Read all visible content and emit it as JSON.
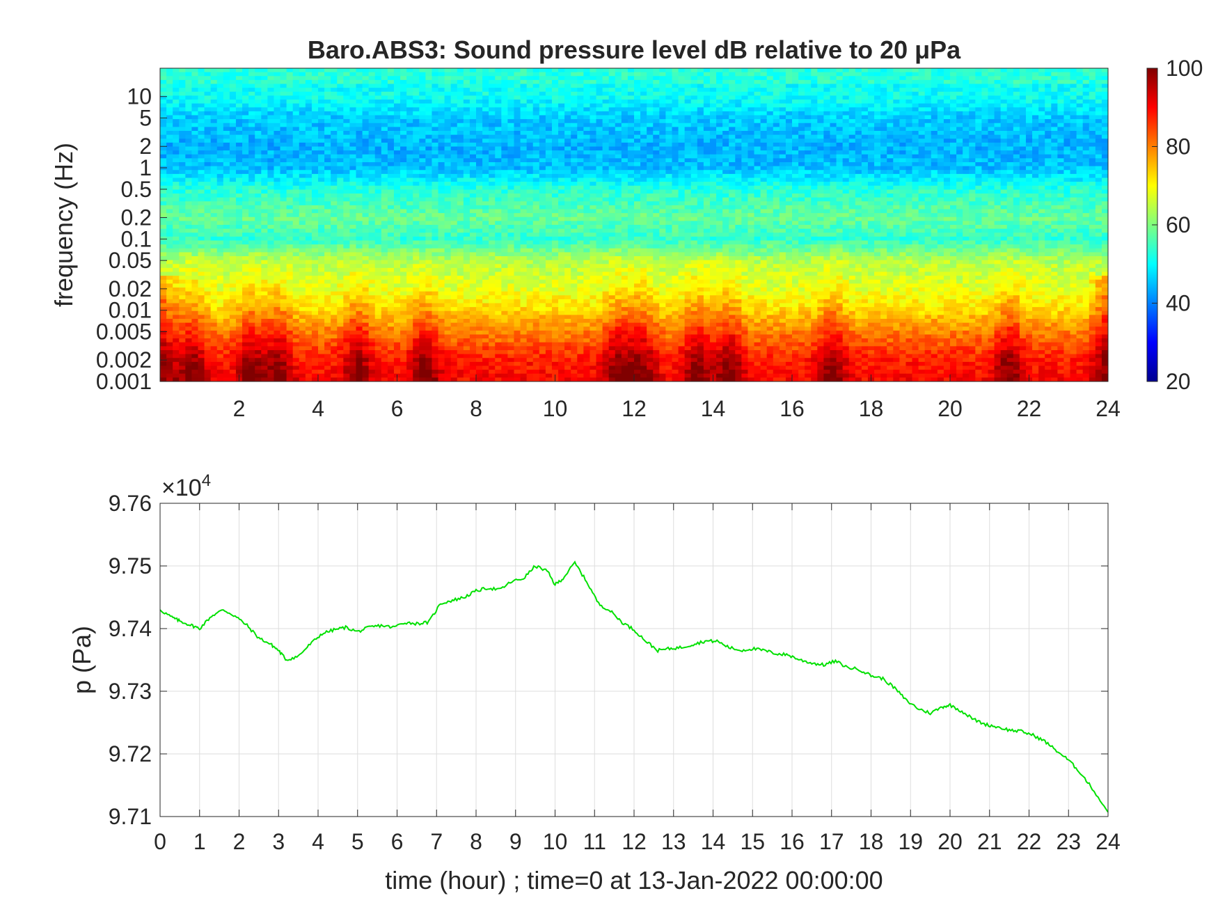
{
  "chart_data": [
    {
      "type": "heatmap",
      "title": "Baro.ABS3: Sound pressure level dB relative to 20 μPa",
      "xlabel": "",
      "ylabel": "frequency (Hz)",
      "x_range": [
        0,
        24
      ],
      "x_ticks": [
        2,
        4,
        6,
        8,
        10,
        12,
        14,
        16,
        18,
        20,
        22,
        24
      ],
      "y_scale": "log",
      "y_range": [
        0.001,
        25
      ],
      "y_ticks": [
        0.001,
        0.002,
        0.005,
        0.01,
        0.02,
        0.05,
        0.1,
        0.2,
        0.5,
        1,
        2,
        5,
        10
      ],
      "y_tick_labels": [
        "0.001",
        "0.002",
        "0.005",
        "0.01",
        "0.02",
        "0.05",
        "0.1",
        "0.2",
        "0.5",
        "1",
        "2",
        "5",
        "10"
      ],
      "colormap": "jet",
      "colorbar": {
        "min": 20,
        "max": 100,
        "ticks": [
          20,
          40,
          60,
          80,
          100
        ]
      },
      "level_profile": [
        {
          "frequency": 0.001,
          "db": 90
        },
        {
          "frequency": 0.002,
          "db": 88
        },
        {
          "frequency": 0.005,
          "db": 80
        },
        {
          "frequency": 0.01,
          "db": 73
        },
        {
          "frequency": 0.02,
          "db": 68
        },
        {
          "frequency": 0.05,
          "db": 64
        },
        {
          "frequency": 0.1,
          "db": 54
        },
        {
          "frequency": 0.2,
          "db": 58
        },
        {
          "frequency": 0.5,
          "db": 53
        },
        {
          "frequency": 1,
          "db": 45
        },
        {
          "frequency": 2,
          "db": 44
        },
        {
          "frequency": 5,
          "db": 46
        },
        {
          "frequency": 10,
          "db": 51
        }
      ],
      "bursts_hours": [
        0.8,
        2.3,
        3.0,
        5.0,
        6.7,
        11.6,
        12.2,
        13.6,
        14.4,
        17.0,
        21.5
      ]
    },
    {
      "type": "line",
      "xlabel": "time (hour) ; time=0 at 13-Jan-2022 00:00:00",
      "ylabel": "p (Pa)",
      "y_multiplier_label": "×10",
      "y_multiplier_exp": "4",
      "xlim": [
        0,
        24
      ],
      "ylim": [
        97100,
        97600
      ],
      "x_ticks": [
        0,
        1,
        2,
        3,
        4,
        5,
        6,
        7,
        8,
        9,
        10,
        11,
        12,
        13,
        14,
        15,
        16,
        17,
        18,
        19,
        20,
        21,
        22,
        23,
        24
      ],
      "y_ticks": [
        97100,
        97200,
        97300,
        97400,
        97500,
        97600
      ],
      "y_tick_labels": [
        "9.71",
        "9.72",
        "9.73",
        "9.74",
        "9.75",
        "9.76"
      ],
      "grid": true,
      "line_color": "#00e000",
      "x": [
        0,
        0.3,
        0.5,
        0.8,
        1.0,
        1.3,
        1.6,
        1.9,
        2.2,
        2.5,
        2.8,
        3.0,
        3.2,
        3.5,
        3.8,
        4.1,
        4.4,
        4.7,
        5.0,
        5.3,
        5.6,
        5.9,
        6.2,
        6.5,
        6.8,
        7.1,
        7.4,
        7.7,
        8.0,
        8.3,
        8.6,
        8.9,
        9.2,
        9.5,
        9.8,
        10.0,
        10.2,
        10.5,
        10.8,
        11.1,
        11.4,
        11.7,
        12.0,
        12.3,
        12.6,
        12.9,
        13.2,
        13.5,
        13.8,
        14.1,
        14.4,
        14.7,
        15.0,
        15.3,
        15.6,
        15.9,
        16.2,
        16.5,
        16.8,
        17.1,
        17.4,
        17.7,
        18.0,
        18.3,
        18.6,
        18.9,
        19.2,
        19.5,
        19.8,
        20.0,
        20.3,
        20.6,
        20.9,
        21.2,
        21.5,
        21.8,
        22.1,
        22.4,
        22.7,
        23.0,
        23.3,
        23.6,
        24.0
      ],
      "y": [
        97430,
        97418,
        97412,
        97405,
        97400,
        97420,
        97430,
        97420,
        97405,
        97385,
        97375,
        97365,
        97350,
        97356,
        97375,
        97392,
        97398,
        97402,
        97395,
        97402,
        97405,
        97402,
        97410,
        97408,
        97410,
        97440,
        97445,
        97450,
        97460,
        97465,
        97462,
        97475,
        97480,
        97500,
        97492,
        97470,
        97480,
        97505,
        97475,
        97440,
        97428,
        97410,
        97398,
        97380,
        97365,
        97368,
        97370,
        97375,
        97380,
        97380,
        97370,
        97365,
        97368,
        97365,
        97360,
        97358,
        97350,
        97345,
        97342,
        97348,
        97338,
        97335,
        97325,
        97320,
        97305,
        97285,
        97272,
        97265,
        97275,
        97278,
        97268,
        97255,
        97247,
        97243,
        97238,
        97236,
        97230,
        97220,
        97205,
        97190,
        97170,
        97145,
        97107
      ]
    }
  ]
}
